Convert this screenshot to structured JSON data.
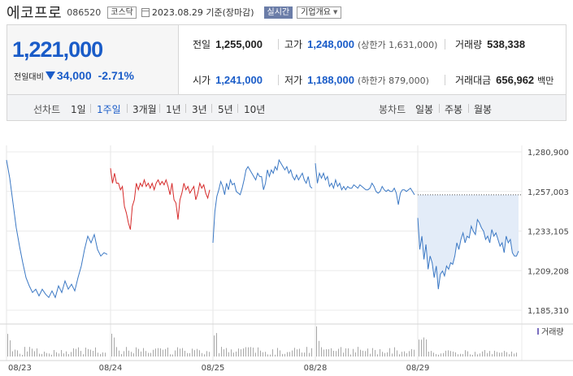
{
  "header": {
    "name": "에코프로",
    "code": "086520",
    "market_badge": "코스닥",
    "date_text": "2023.08.29 기준(장마감)",
    "live_badge": "실시간",
    "overview_label": "기업개요"
  },
  "quote": {
    "price": "1,221,000",
    "change_label": "전일대비",
    "change_value": "34,000",
    "change_pct": "-2.71%",
    "prev_close_label": "전일",
    "prev_close": "1,255,000",
    "high_label": "고가",
    "high": "1,248,000",
    "upper_limit": "(상한가 1,631,000)",
    "volume_label": "거래량",
    "volume": "538,338",
    "open_label": "시가",
    "open": "1,241,000",
    "low_label": "저가",
    "low": "1,188,000",
    "lower_limit": "(하한가 879,000)",
    "amount_label": "거래대금",
    "amount": "656,962",
    "amount_unit": "백만"
  },
  "periods": {
    "line_label": "선차트",
    "line_items": [
      "1일",
      "1주일",
      "3개월",
      "1년",
      "3년",
      "5년",
      "10년"
    ],
    "active": "1주일",
    "candle_label": "봉차트",
    "candle_items": [
      "일봉",
      "주봉",
      "월봉"
    ]
  },
  "colors": {
    "blue": "#1a5cc8",
    "red": "#d62b2b",
    "fill": "#e3ecf8",
    "line": "#3b78c4"
  },
  "chart_data": {
    "type": "line",
    "y_ticks": [
      "1,280,900",
      "1,257,003",
      "1,233,105",
      "1,209,208",
      "1,185,310"
    ],
    "ylim": [
      1185310,
      1280900
    ],
    "reference_value": 1255000,
    "x_labels": [
      "08/23",
      "08/24",
      "08/25",
      "08/28",
      "08/29"
    ],
    "volume_label": "거래량",
    "grid": true,
    "series": [
      {
        "day": "08/23",
        "color": "blue",
        "values": [
          1276000,
          1265000,
          1250000,
          1235000,
          1224000,
          1214000,
          1205000,
          1200000,
          1196000,
          1198000,
          1194000,
          1198000,
          1195000,
          1193000,
          1197000,
          1193000,
          1200000,
          1196000,
          1203000,
          1198000,
          1201000,
          1197000,
          1205000,
          1212000,
          1222000,
          1230000,
          1226000,
          1231000,
          1222000,
          1218000,
          1220000,
          1219000
        ]
      },
      {
        "day": "08/24",
        "color": "red",
        "values": [
          1271000,
          1262000,
          1268000,
          1262000,
          1262000,
          1258000,
          1260000,
          1248000,
          1244000,
          1238000,
          1234000,
          1248000,
          1252000,
          1262000,
          1258000,
          1262000,
          1260000,
          1264000,
          1260000,
          1262000,
          1259000,
          1262000,
          1258000,
          1262000,
          1264000,
          1261000,
          1263000,
          1261000,
          1264000,
          1260000,
          1255000,
          1262000,
          1252000,
          1250000,
          1240000,
          1252000,
          1256000,
          1262000,
          1258000,
          1260000,
          1256000,
          1258000,
          1260000,
          1252000,
          1256000,
          1262000,
          1259000,
          1261000,
          1256000,
          1253000,
          1258000
        ]
      },
      {
        "day": "08/25",
        "color": "blue",
        "values": [
          1226000,
          1245000,
          1254000,
          1258000,
          1263000,
          1260000,
          1255000,
          1262000,
          1258000,
          1264000,
          1261000,
          1262000,
          1257000,
          1256000,
          1255000,
          1259000,
          1264000,
          1270000,
          1272000,
          1270000,
          1268000,
          1266000,
          1264000,
          1268000,
          1266000,
          1266000,
          1258000,
          1262000,
          1270000,
          1266000,
          1270000,
          1268000,
          1272000,
          1270000,
          1276000,
          1274000,
          1272000,
          1270000,
          1272000,
          1268000,
          1270000,
          1266000,
          1264000,
          1267000,
          1264000,
          1266000,
          1268000,
          1264000,
          1262000,
          1266000,
          1260000,
          1259000
        ]
      },
      {
        "day": "08/28",
        "color": "blue",
        "values": [
          1274000,
          1262000,
          1268000,
          1265000,
          1268000,
          1264000,
          1266000,
          1260000,
          1262000,
          1259000,
          1264000,
          1260000,
          1262000,
          1258000,
          1260000,
          1258000,
          1260000,
          1259000,
          1259000,
          1261000,
          1260000,
          1259000,
          1261000,
          1260000,
          1259000,
          1258000,
          1258000,
          1259000,
          1262000,
          1260000,
          1257000,
          1256000,
          1257000,
          1260000,
          1258000,
          1257000,
          1258000,
          1257000,
          1257000,
          1259000,
          1256000,
          1249000,
          1256000,
          1258000,
          1258000,
          1257000,
          1258000,
          1259000,
          1257000,
          1255000
        ]
      },
      {
        "day": "08/29",
        "color": "blue",
        "fill_to_reference": true,
        "values": [
          1241000,
          1222000,
          1230000,
          1216000,
          1225000,
          1210000,
          1218000,
          1214000,
          1205000,
          1212000,
          1198000,
          1207000,
          1209000,
          1206000,
          1212000,
          1210000,
          1214000,
          1213000,
          1218000,
          1226000,
          1222000,
          1228000,
          1232000,
          1226000,
          1230000,
          1229000,
          1236000,
          1233000,
          1231000,
          1240000,
          1238000,
          1235000,
          1233000,
          1228000,
          1230000,
          1226000,
          1234000,
          1230000,
          1232000,
          1228000,
          1224000,
          1226000,
          1220000,
          1230000,
          1226000,
          1228000,
          1220000,
          1218000,
          1218000,
          1221000
        ]
      }
    ]
  }
}
